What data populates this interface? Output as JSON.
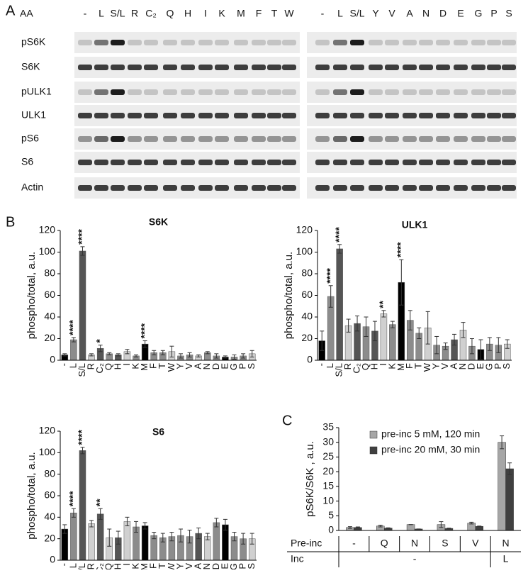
{
  "panel_labels": [
    "A",
    "B",
    "C"
  ],
  "blot": {
    "header": "AA",
    "lanes_left": [
      "-",
      "L",
      "S/L",
      "R",
      "C₂",
      "Q",
      "H",
      "I",
      "K",
      "M",
      "F",
      "T",
      "W"
    ],
    "lanes_right": [
      "-",
      "L",
      "S/L",
      "Y",
      "V",
      "A",
      "N",
      "D",
      "E",
      "G",
      "P",
      "S"
    ],
    "rows": [
      "pS6K",
      "S6K",
      "pULK1",
      "ULK1",
      "pS6",
      "S6",
      "Actin"
    ]
  },
  "chart_data": [
    {
      "type": "bar",
      "title": "S6K",
      "ylabel": "phospho/total, a.u.",
      "categories": [
        "-",
        "L",
        "S/L",
        "R",
        "C₂",
        "Q",
        "H",
        "I",
        "K",
        "M",
        "F",
        "T",
        "W",
        "Y",
        "V",
        "A",
        "N",
        "D",
        "E",
        "G",
        "P",
        "S"
      ],
      "values": [
        5,
        19,
        101,
        5,
        11,
        6,
        5,
        8,
        4,
        15,
        7,
        7,
        8,
        4,
        5,
        4,
        7,
        4,
        3,
        3,
        4,
        6
      ],
      "errors": [
        1,
        2,
        4,
        1,
        3,
        1,
        1,
        2,
        1,
        3,
        2,
        2,
        5,
        2,
        2,
        1,
        1,
        2,
        1,
        2,
        2,
        3
      ],
      "significance": [
        null,
        "****",
        "****",
        null,
        "*",
        null,
        null,
        null,
        null,
        "****",
        null,
        null,
        null,
        null,
        null,
        null,
        null,
        null,
        null,
        null,
        null,
        null
      ],
      "colors": [
        "#000000",
        "#8c8c8c",
        "#555555",
        "#d0d0d0",
        "#555555",
        "#8c8c8c",
        "#555555",
        "#d0d0d0",
        "#8c8c8c",
        "#000000",
        "#8c8c8c",
        "#8c8c8c",
        "#d0d0d0",
        "#8c8c8c",
        "#8c8c8c",
        "#d0d0d0",
        "#8c8c8c",
        "#8c8c8c",
        "#000000",
        "#8c8c8c",
        "#8c8c8c",
        "#d0d0d0"
      ],
      "ylim": [
        0,
        120
      ],
      "yticks": [
        0,
        20,
        40,
        60,
        80,
        100,
        120
      ]
    },
    {
      "type": "bar",
      "title": "ULK1",
      "ylabel": "phospho/total, a.u.",
      "categories": [
        "-",
        "L",
        "S/L",
        "R",
        "C₂",
        "Q",
        "H",
        "I",
        "K",
        "M",
        "F",
        "T",
        "W",
        "Y",
        "V",
        "A",
        "N",
        "D",
        "E",
        "G",
        "P",
        "S"
      ],
      "values": [
        18,
        59,
        103,
        32,
        34,
        31,
        27,
        43,
        33,
        72,
        37,
        25,
        30,
        14,
        13,
        19,
        28,
        13,
        10,
        15,
        14,
        15
      ],
      "errors": [
        9,
        10,
        4,
        6,
        7,
        9,
        9,
        3,
        3,
        21,
        9,
        5,
        15,
        8,
        3,
        5,
        7,
        7,
        9,
        6,
        7,
        4
      ],
      "significance": [
        null,
        "****",
        "****",
        null,
        null,
        null,
        null,
        "**",
        null,
        "****",
        null,
        null,
        null,
        null,
        null,
        null,
        null,
        null,
        null,
        null,
        null,
        null
      ],
      "colors": [
        "#000000",
        "#8c8c8c",
        "#555555",
        "#d0d0d0",
        "#555555",
        "#8c8c8c",
        "#555555",
        "#d0d0d0",
        "#8c8c8c",
        "#000000",
        "#8c8c8c",
        "#8c8c8c",
        "#d0d0d0",
        "#8c8c8c",
        "#8c8c8c",
        "#555555",
        "#d0d0d0",
        "#8c8c8c",
        "#000000",
        "#8c8c8c",
        "#8c8c8c",
        "#d0d0d0"
      ],
      "ylim": [
        0,
        120
      ],
      "yticks": [
        0,
        20,
        40,
        60,
        80,
        100,
        120
      ]
    },
    {
      "type": "bar",
      "title": "S6",
      "ylabel": "phospho/total, a.u.",
      "categories": [
        "-",
        "L",
        "S/L",
        "R",
        "C₂",
        "Q",
        "H",
        "I",
        "K",
        "M",
        "F",
        "T",
        "W",
        "Y",
        "V",
        "A",
        "N",
        "D",
        "E",
        "G",
        "P",
        "S"
      ],
      "values": [
        29,
        44,
        102,
        34,
        43,
        21,
        21,
        36,
        31,
        32,
        23,
        21,
        22,
        23,
        22,
        25,
        22,
        35,
        33,
        22,
        20,
        20
      ],
      "errors": [
        4,
        4,
        3,
        3,
        5,
        8,
        6,
        4,
        5,
        3,
        3,
        4,
        4,
        6,
        6,
        5,
        3,
        4,
        5,
        4,
        5,
        5
      ],
      "significance": [
        null,
        "****",
        "****",
        null,
        "**",
        null,
        null,
        null,
        null,
        null,
        null,
        null,
        null,
        null,
        null,
        null,
        null,
        null,
        null,
        null,
        null,
        null
      ],
      "colors": [
        "#000000",
        "#8c8c8c",
        "#555555",
        "#d0d0d0",
        "#555555",
        "#d0d0d0",
        "#555555",
        "#d0d0d0",
        "#8c8c8c",
        "#000000",
        "#8c8c8c",
        "#8c8c8c",
        "#8c8c8c",
        "#8c8c8c",
        "#8c8c8c",
        "#555555",
        "#d0d0d0",
        "#8c8c8c",
        "#000000",
        "#8c8c8c",
        "#8c8c8c",
        "#d0d0d0"
      ],
      "ylim": [
        0,
        120
      ],
      "yticks": [
        0,
        20,
        40,
        60,
        80,
        100,
        120
      ]
    },
    {
      "type": "grouped_bar",
      "ylabel": "pS6K/S6K , a.u.",
      "categories": [
        "-",
        "Q",
        "N",
        "S",
        "V",
        "N"
      ],
      "series": [
        {
          "name": "pre-inc 5 mM, 120 min",
          "color": "#a6a6a6",
          "values": [
            1,
            1.5,
            2,
            2,
            2.5,
            30
          ],
          "errors": [
            0.3,
            0.3,
            0,
            1,
            0.3,
            2.2
          ]
        },
        {
          "name": "pre-inc 20 mM, 30 min",
          "color": "#404040",
          "values": [
            1,
            0.8,
            0.5,
            0.7,
            1.4,
            21
          ],
          "errors": [
            0.2,
            0.1,
            0,
            0.1,
            0.1,
            2
          ]
        }
      ],
      "row_labels": [
        "Pre-inc",
        "Inc"
      ],
      "inc_groups": [
        {
          "label": "-",
          "span": 5
        },
        {
          "label": "L",
          "span": 1
        }
      ],
      "ylim": [
        0,
        35
      ],
      "yticks": [
        0,
        5,
        10,
        15,
        20,
        25,
        30,
        35
      ]
    }
  ]
}
